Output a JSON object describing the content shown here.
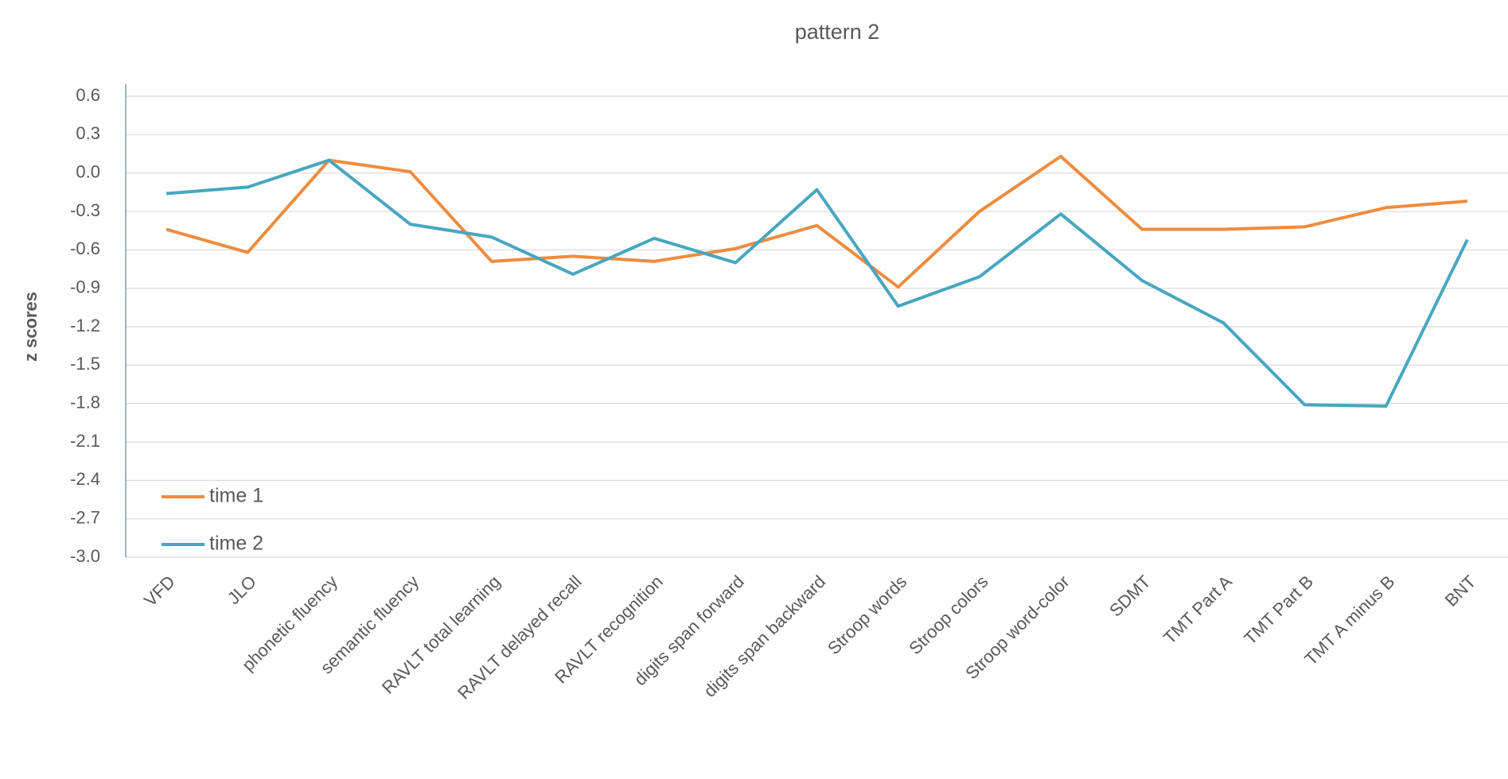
{
  "chart_data": {
    "type": "line",
    "title": "pattern 2",
    "y_label": "z scores",
    "categories": [
      "VFD",
      "JLO",
      "phonetic fluency",
      "semantic fluency",
      "RAVLT total learning",
      "RAVLT delayed recall",
      "RAVLT recognition",
      "digits span forward",
      "digits span backward",
      "Stroop words",
      "Stroop colors",
      "Stroop word-color",
      "SDMT",
      "TMT Part A",
      "TMT Part B",
      "TMT A minus B",
      "BNT"
    ],
    "series": [
      {
        "name": "time 1",
        "color": "#ee8c3f",
        "values": [
          -0.44,
          -0.62,
          0.1,
          0.01,
          -0.69,
          -0.65,
          -0.69,
          -0.59,
          -0.41,
          -0.89,
          -0.3,
          0.13,
          -0.44,
          -0.44,
          -0.42,
          -0.27,
          -0.22
        ]
      },
      {
        "name": "time 2",
        "color": "#48a6c0",
        "values": [
          -0.16,
          -0.11,
          0.1,
          -0.4,
          -0.5,
          -0.79,
          -0.51,
          -0.7,
          -0.13,
          -1.04,
          -0.81,
          -0.32,
          -0.84,
          -1.17,
          -1.81,
          -1.82,
          -0.52
        ]
      }
    ],
    "ylim": [
      -3.0,
      0.6
    ],
    "yticks": [
      0.6,
      0.3,
      {
        "value": 0,
        "label": "0.0"
      },
      -0.3,
      -0.6,
      -0.9,
      -1.2,
      -1.5,
      -1.8,
      -2.1,
      -2.4,
      -2.7,
      {
        "value": -3.0,
        "label": "-3.0"
      }
    ],
    "grid": true,
    "legend": "lower left"
  }
}
